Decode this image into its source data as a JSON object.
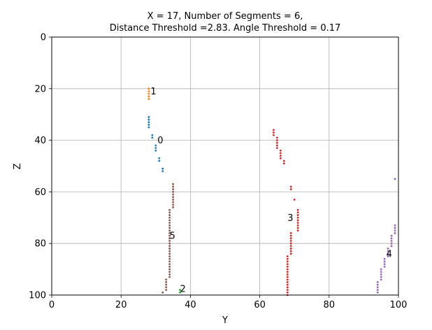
{
  "chart_data": {
    "type": "scatter",
    "title_line1": "X = 17, Number of Segments = 6,",
    "title_line2": "Distance Threshold =2.83. Angle Threshold = 0.17",
    "xlabel": "Y",
    "ylabel": "Z",
    "xlim": [
      0,
      100
    ],
    "ylim": [
      100,
      0
    ],
    "y_inverted": true,
    "grid": true,
    "xticks": [
      "0",
      "20",
      "40",
      "60",
      "80",
      "100"
    ],
    "yticks": [
      "0",
      "20",
      "40",
      "60",
      "80",
      "100"
    ],
    "series": [
      {
        "label": "0",
        "color": "#1f77b4",
        "label_pos": [
          30.5,
          40
        ],
        "points": [
          [
            28,
            31
          ],
          [
            28,
            32
          ],
          [
            28,
            33
          ],
          [
            28,
            34
          ],
          [
            28,
            35
          ],
          [
            29,
            38
          ],
          [
            29,
            39
          ],
          [
            30,
            42
          ],
          [
            30,
            43
          ],
          [
            30,
            44
          ],
          [
            31,
            47
          ],
          [
            31,
            48
          ],
          [
            32,
            51
          ],
          [
            32,
            52
          ]
        ]
      },
      {
        "label": "1",
        "color": "#ff7f0e",
        "label_pos": [
          28.5,
          21
        ],
        "points": [
          [
            28,
            20
          ],
          [
            28,
            21
          ],
          [
            28,
            22
          ],
          [
            28,
            23
          ],
          [
            28,
            24
          ]
        ]
      },
      {
        "label": "2",
        "color": "#2ca02c",
        "label_pos": [
          37,
          97.5
        ],
        "points": [
          [
            37,
            98
          ],
          [
            37,
            99
          ]
        ]
      },
      {
        "label": "3",
        "color": "#d62728",
        "label_pos": [
          68,
          70
        ],
        "points": [
          [
            64,
            36
          ],
          [
            64,
            37
          ],
          [
            64,
            38
          ],
          [
            65,
            39
          ],
          [
            65,
            40
          ],
          [
            65,
            41
          ],
          [
            65,
            42
          ],
          [
            65,
            43
          ],
          [
            66,
            44
          ],
          [
            66,
            45
          ],
          [
            66,
            46
          ],
          [
            66,
            47
          ],
          [
            67,
            48
          ],
          [
            67,
            49
          ],
          [
            69,
            58
          ],
          [
            69,
            59
          ],
          [
            70,
            63
          ],
          [
            71,
            67
          ],
          [
            71,
            68
          ],
          [
            71,
            69
          ],
          [
            71,
            70
          ],
          [
            71,
            71
          ],
          [
            71,
            72
          ],
          [
            71,
            73
          ],
          [
            71,
            74
          ],
          [
            71,
            75
          ],
          [
            69,
            76
          ],
          [
            69,
            77
          ],
          [
            69,
            78
          ],
          [
            69,
            79
          ],
          [
            69,
            80
          ],
          [
            69,
            81
          ],
          [
            69,
            82
          ],
          [
            69,
            83
          ],
          [
            69,
            84
          ],
          [
            68,
            85
          ],
          [
            68,
            86
          ],
          [
            68,
            87
          ],
          [
            68,
            88
          ],
          [
            68,
            89
          ],
          [
            68,
            90
          ],
          [
            68,
            91
          ],
          [
            68,
            92
          ],
          [
            68,
            93
          ],
          [
            68,
            94
          ],
          [
            68,
            95
          ],
          [
            68,
            96
          ],
          [
            68,
            97
          ],
          [
            68,
            98
          ],
          [
            68,
            99
          ],
          [
            68,
            100
          ]
        ]
      },
      {
        "label": "4",
        "color": "#9467bd",
        "label_pos": [
          96.5,
          84
        ],
        "points": [
          [
            99,
            55
          ],
          [
            99,
            73
          ],
          [
            99,
            74
          ],
          [
            99,
            75
          ],
          [
            99,
            76
          ],
          [
            98,
            77
          ],
          [
            98,
            78
          ],
          [
            98,
            79
          ],
          [
            98,
            80
          ],
          [
            98,
            81
          ],
          [
            97,
            82
          ],
          [
            97,
            83
          ],
          [
            97,
            84
          ],
          [
            97,
            85
          ],
          [
            96,
            86
          ],
          [
            96,
            87
          ],
          [
            96,
            88
          ],
          [
            96,
            89
          ],
          [
            95,
            90
          ],
          [
            95,
            91
          ],
          [
            95,
            92
          ],
          [
            95,
            93
          ],
          [
            95,
            94
          ],
          [
            94,
            95
          ],
          [
            94,
            96
          ],
          [
            94,
            97
          ],
          [
            94,
            98
          ],
          [
            94,
            99
          ]
        ]
      },
      {
        "label": "5",
        "color": "#8c564b",
        "label_pos": [
          34,
          77
        ],
        "points": [
          [
            35,
            57
          ],
          [
            35,
            58
          ],
          [
            35,
            59
          ],
          [
            35,
            60
          ],
          [
            35,
            61
          ],
          [
            35,
            62
          ],
          [
            35,
            63
          ],
          [
            35,
            64
          ],
          [
            35,
            65
          ],
          [
            35,
            66
          ],
          [
            34,
            67
          ],
          [
            34,
            68
          ],
          [
            34,
            69
          ],
          [
            34,
            70
          ],
          [
            34,
            71
          ],
          [
            34,
            72
          ],
          [
            34,
            73
          ],
          [
            34,
            74
          ],
          [
            34,
            75
          ],
          [
            34,
            76
          ],
          [
            34,
            77
          ],
          [
            34,
            78
          ],
          [
            34,
            79
          ],
          [
            34,
            80
          ],
          [
            34,
            81
          ],
          [
            34,
            82
          ],
          [
            34,
            83
          ],
          [
            34,
            84
          ],
          [
            34,
            85
          ],
          [
            34,
            86
          ],
          [
            34,
            87
          ],
          [
            34,
            88
          ],
          [
            34,
            89
          ],
          [
            34,
            90
          ],
          [
            34,
            91
          ],
          [
            34,
            92
          ],
          [
            34,
            93
          ],
          [
            33,
            94
          ],
          [
            33,
            95
          ],
          [
            33,
            96
          ],
          [
            33,
            97
          ],
          [
            33,
            98
          ],
          [
            32,
            99
          ]
        ]
      }
    ]
  }
}
